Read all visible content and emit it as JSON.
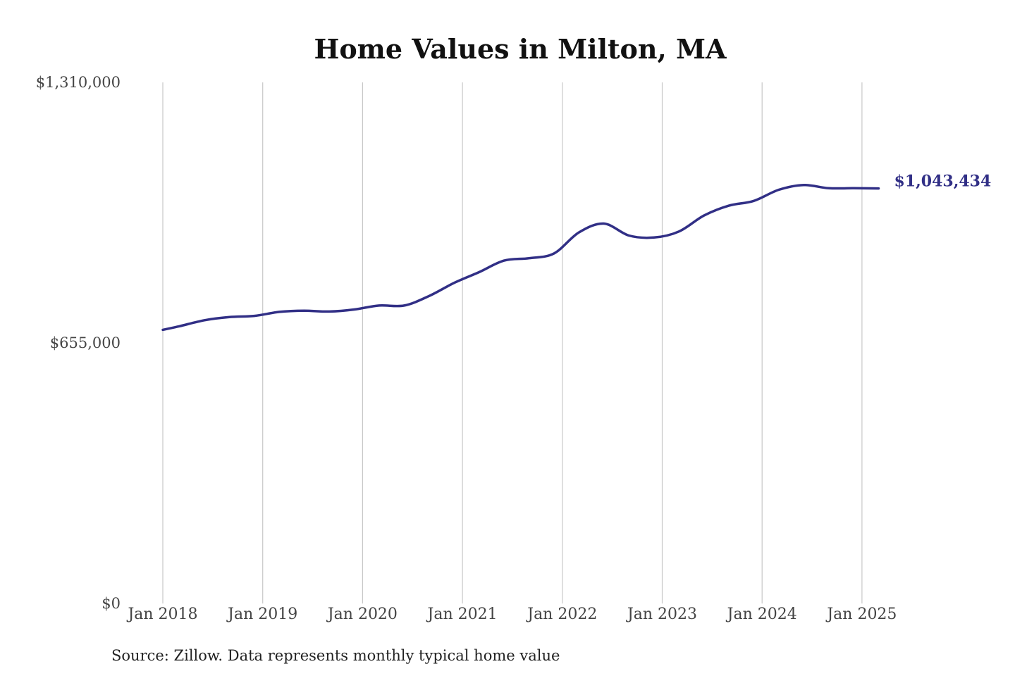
{
  "colors": {
    "series": "#312f86",
    "grid": "#c8c8c8",
    "text": "#444444"
  },
  "source_note": "Source: Zillow. Data represents monthly typical home value",
  "chart_data": {
    "type": "line",
    "title": "Home Values in Milton, MA",
    "xlabel": "",
    "ylabel": "",
    "x_tick_labels": [
      "Jan 2018",
      "Jan 2019",
      "Jan 2020",
      "Jan 2021",
      "Jan 2022",
      "Jan 2023",
      "Jan 2024",
      "Jan 2025"
    ],
    "y_tick_labels": [
      "$0",
      "$655,000",
      "$1,310,000"
    ],
    "ylim": [
      0,
      1310000
    ],
    "xlim": [
      "2018-01",
      "2025-03"
    ],
    "grid": "vertical",
    "end_label": "$1,043,434",
    "series": [
      {
        "x": [
          "2018-01",
          "2018-03",
          "2018-06",
          "2018-09",
          "2018-12",
          "2019-03",
          "2019-06",
          "2019-09",
          "2019-12",
          "2020-03",
          "2020-06",
          "2020-09",
          "2020-12",
          "2021-03",
          "2021-06",
          "2021-09",
          "2021-12",
          "2022-03",
          "2022-06",
          "2022-09",
          "2022-12",
          "2023-03",
          "2023-06",
          "2023-09",
          "2023-12",
          "2024-03",
          "2024-06",
          "2024-09",
          "2024-12",
          "2025-03"
        ],
        "values": [
          688000,
          697000,
          712000,
          720000,
          723000,
          733000,
          736000,
          734000,
          739000,
          749000,
          749000,
          773000,
          806000,
          833000,
          862000,
          868000,
          880000,
          933000,
          955000,
          925000,
          920000,
          935000,
          975000,
          1000000,
          1012000,
          1040000,
          1052000,
          1044000,
          1044000,
          1043434
        ]
      }
    ]
  }
}
